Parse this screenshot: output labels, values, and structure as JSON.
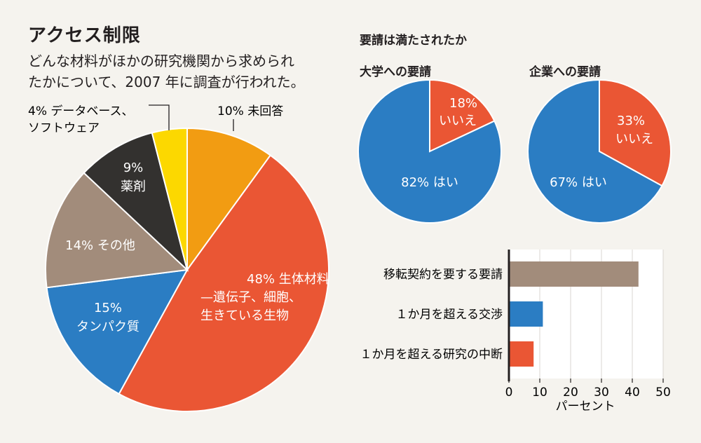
{
  "page": {
    "title": "アクセス制限",
    "subtitle_line1": "どんな材料がほかの研究機関から求められ",
    "subtitle_line2": "たかについて、2007 年に調査が行われた。"
  },
  "colors": {
    "orange": "#f29c12",
    "red": "#ea5634",
    "blue": "#2b7dc3",
    "taupe": "#a28c7b",
    "dark": "#33312f",
    "yellow": "#fcd800",
    "background": "#f5f3ee"
  },
  "chart_data": [
    {
      "type": "pie",
      "id": "materials",
      "slices": [
        {
          "label_pct": "10%",
          "label": "未回答",
          "value": 10,
          "color": "#f29c12"
        },
        {
          "label_pct": "48%",
          "label": "生体材料",
          "label2": "—遺伝子、細胞、",
          "label3": "生きている生物",
          "value": 48,
          "color": "#ea5634"
        },
        {
          "label_pct": "15%",
          "label": "タンパク質",
          "value": 15,
          "color": "#2b7dc3"
        },
        {
          "label_pct": "14%",
          "label": "その他",
          "value": 14,
          "color": "#a28c7b"
        },
        {
          "label_pct": "9%",
          "label": "薬剤",
          "value": 9,
          "color": "#33312f"
        },
        {
          "label_pct": "4%",
          "label": "データベース、",
          "label2": "ソフトウェア",
          "value": 4,
          "color": "#fcd800"
        }
      ]
    },
    {
      "type": "pie",
      "id": "university",
      "group_title": "要請は満たされたか",
      "title": "大学への要請",
      "slices": [
        {
          "label_pct": "18%",
          "label": "いいえ",
          "value": 18,
          "color": "#ea5634"
        },
        {
          "label_pct": "82%",
          "label": "はい",
          "value": 82,
          "color": "#2b7dc3"
        }
      ]
    },
    {
      "type": "pie",
      "id": "company",
      "title": "企業への要請",
      "slices": [
        {
          "label_pct": "33%",
          "label": "いいえ",
          "value": 33,
          "color": "#ea5634"
        },
        {
          "label_pct": "67%",
          "label": "はい",
          "value": 67,
          "color": "#2b7dc3"
        }
      ]
    },
    {
      "type": "bar",
      "orientation": "horizontal",
      "id": "reasons",
      "categories": [
        "移転契約を要する要請",
        "１か月を超える交渉",
        "１か月を超える研究の中断"
      ],
      "values": [
        42,
        11,
        8
      ],
      "colors": [
        "#a28c7b",
        "#2b7dc3",
        "#ea5634"
      ],
      "xlabel": "パーセント",
      "xlim": [
        0,
        50
      ],
      "xticks": [
        "0",
        "10",
        "20",
        "30",
        "40",
        "50"
      ],
      "grid": true
    }
  ]
}
